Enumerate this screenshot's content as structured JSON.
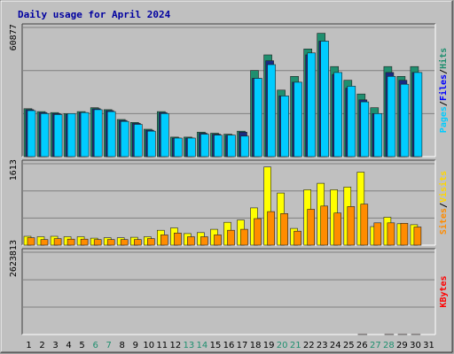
{
  "chart_data": [
    {
      "type": "bar",
      "title": "Daily usage for April 2024",
      "ylabel_parts": [
        "Pages",
        "Files",
        "Hits"
      ],
      "ylabel_separator": "/",
      "max_label": "60877",
      "ylim": [
        0,
        66000
      ],
      "categories": [
        "1",
        "2",
        "3",
        "4",
        "5",
        "6",
        "7",
        "8",
        "9",
        "10",
        "11",
        "12",
        "13",
        "14",
        "15",
        "16",
        "17",
        "18",
        "19",
        "20",
        "21",
        "22",
        "23",
        "24",
        "25",
        "26",
        "27",
        "28",
        "29",
        "30",
        "31"
      ],
      "weekend_days": [
        "6",
        "7",
        "13",
        "14",
        "20",
        "21",
        "27",
        "28"
      ],
      "series": [
        {
          "name": "Hits",
          "color": "#1f8f6f",
          "values": [
            24500,
            23000,
            22500,
            22000,
            23000,
            25000,
            24000,
            19000,
            17500,
            14000,
            23000,
            10000,
            10000,
            12500,
            12000,
            11500,
            13000,
            44000,
            52000,
            34000,
            41000,
            55000,
            63000,
            46000,
            39000,
            32000,
            25000,
            46000,
            41000,
            46000,
            0
          ]
        },
        {
          "name": "Files",
          "color": "#1a2a80",
          "values": [
            24000,
            22500,
            22000,
            21500,
            22500,
            24500,
            23500,
            18500,
            17000,
            13500,
            22500,
            9500,
            9500,
            12000,
            11500,
            11000,
            12500,
            40000,
            49000,
            31000,
            38000,
            52000,
            59000,
            42000,
            35000,
            29000,
            22000,
            43000,
            39000,
            43000,
            0
          ]
        },
        {
          "name": "Pages",
          "color": "#00ccff",
          "values": [
            23500,
            22000,
            21500,
            22000,
            22500,
            24000,
            23000,
            18000,
            16500,
            13000,
            22000,
            9500,
            9500,
            11500,
            11000,
            11000,
            10500,
            40000,
            47000,
            31000,
            38000,
            53000,
            59000,
            43000,
            36000,
            28000,
            22000,
            41000,
            37000,
            43000,
            0
          ]
        }
      ]
    },
    {
      "type": "bar",
      "ylabel_parts": [
        "Sites",
        "Visits"
      ],
      "ylabel_separator": "/",
      "max_label": "1613",
      "ylim": [
        0,
        1750
      ],
      "categories": [
        "1",
        "2",
        "3",
        "4",
        "5",
        "6",
        "7",
        "8",
        "9",
        "10",
        "11",
        "12",
        "13",
        "14",
        "15",
        "16",
        "17",
        "18",
        "19",
        "20",
        "21",
        "22",
        "23",
        "24",
        "25",
        "26",
        "27",
        "28",
        "29",
        "30",
        "31"
      ],
      "series": [
        {
          "name": "Visits",
          "color": "#ffff00",
          "values": [
            190,
            180,
            190,
            180,
            180,
            150,
            160,
            160,
            170,
            180,
            320,
            370,
            250,
            270,
            340,
            490,
            540,
            800,
            1680,
            1120,
            360,
            1190,
            1330,
            1190,
            1250,
            1570,
            400,
            600,
            460,
            440,
            0
          ]
        },
        {
          "name": "Sites",
          "color": "#ff8c00",
          "values": [
            160,
            120,
            140,
            130,
            130,
            120,
            120,
            120,
            120,
            140,
            220,
            260,
            180,
            180,
            220,
            320,
            340,
            570,
            720,
            680,
            300,
            770,
            840,
            690,
            830,
            880,
            480,
            480,
            470,
            390,
            0
          ]
        }
      ]
    },
    {
      "type": "bar",
      "ylabel_parts": [
        "KBytes"
      ],
      "max_label": "2623813",
      "ylim": [
        0,
        2840000
      ],
      "categories": [
        "1",
        "2",
        "3",
        "4",
        "5",
        "6",
        "7",
        "8",
        "9",
        "10",
        "11",
        "12",
        "13",
        "14",
        "15",
        "16",
        "17",
        "18",
        "19",
        "20",
        "21",
        "22",
        "23",
        "24",
        "25",
        "26",
        "27",
        "28",
        "29",
        "30",
        "31"
      ],
      "series": [
        {
          "name": "KBytes",
          "color": "#ff0000",
          "values": [
            510,
            420,
            430,
            480,
            520,
            500,
            500,
            380,
            400,
            380,
            580,
            760,
            770,
            790,
            810,
            740,
            720,
            860,
            980,
            1100,
            950,
            1020,
            1260,
            1120,
            1250,
            1820,
            1280,
            2390,
            2430,
            2240,
            0
          ]
        }
      ]
    }
  ]
}
